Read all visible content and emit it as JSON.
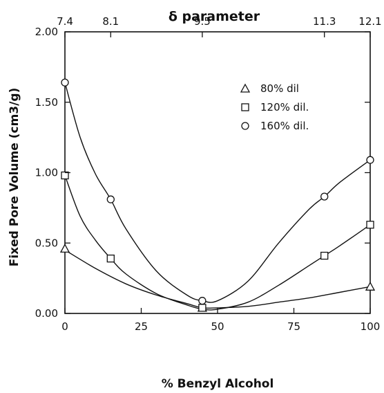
{
  "chart_data": {
    "type": "scatter",
    "title": "",
    "top_axis_label": "δ parameter",
    "xlabel": "% Benzyl Alcohol",
    "ylabel": "Fixed Pore Volume (cm3/g)",
    "xlim": [
      0,
      100
    ],
    "ylim": [
      0,
      2.0
    ],
    "x_ticks": [
      0,
      25,
      50,
      75,
      100
    ],
    "x_tick_labels": [
      "0",
      "25",
      "50",
      "75",
      "100"
    ],
    "y_ticks": [
      0,
      0.5,
      1.0,
      1.5,
      2.0
    ],
    "y_tick_labels": [
      "0.00",
      "0.50",
      "1.00",
      "1.50",
      "2.00"
    ],
    "top_ticks": [
      {
        "x": 0,
        "label": "7.4"
      },
      {
        "x": 15,
        "label": "8.1"
      },
      {
        "x": 45,
        "label": "9.5"
      },
      {
        "x": 85,
        "label": "11.3"
      },
      {
        "x": 100,
        "label": "12.1"
      }
    ],
    "grid": false,
    "legend_position": "top-right",
    "series": [
      {
        "name": "80% dil",
        "marker": "triangle",
        "x": [
          0,
          45,
          100
        ],
        "y": [
          0.46,
          0.04,
          0.19
        ]
      },
      {
        "name": "120% dil.",
        "marker": "square",
        "x": [
          0,
          15,
          45,
          85,
          100
        ],
        "y": [
          0.98,
          0.39,
          0.04,
          0.41,
          0.63
        ]
      },
      {
        "name": "160% dil.",
        "marker": "circle",
        "x": [
          0,
          15,
          45,
          85,
          100
        ],
        "y": [
          1.64,
          0.81,
          0.09,
          0.83,
          1.09
        ]
      }
    ],
    "curves": [
      {
        "series": "80% dil",
        "x": [
          0,
          10,
          20,
          30,
          40,
          45,
          50,
          60,
          70,
          80,
          90,
          100
        ],
        "y": [
          0.45,
          0.32,
          0.21,
          0.13,
          0.07,
          0.04,
          0.04,
          0.05,
          0.08,
          0.11,
          0.15,
          0.19
        ]
      },
      {
        "series": "120% dil.",
        "x": [
          0,
          5,
          10,
          15,
          20,
          30,
          40,
          45,
          50,
          60,
          70,
          80,
          85,
          90,
          100
        ],
        "y": [
          0.98,
          0.69,
          0.52,
          0.39,
          0.28,
          0.14,
          0.06,
          0.03,
          0.03,
          0.08,
          0.2,
          0.34,
          0.41,
          0.48,
          0.63
        ]
      },
      {
        "series": "160% dil.",
        "x": [
          0,
          5,
          10,
          15,
          20,
          30,
          40,
          45,
          50,
          60,
          70,
          80,
          85,
          90,
          100
        ],
        "y": [
          1.64,
          1.25,
          0.99,
          0.81,
          0.6,
          0.3,
          0.13,
          0.09,
          0.09,
          0.23,
          0.5,
          0.74,
          0.83,
          0.93,
          1.09
        ]
      }
    ]
  }
}
